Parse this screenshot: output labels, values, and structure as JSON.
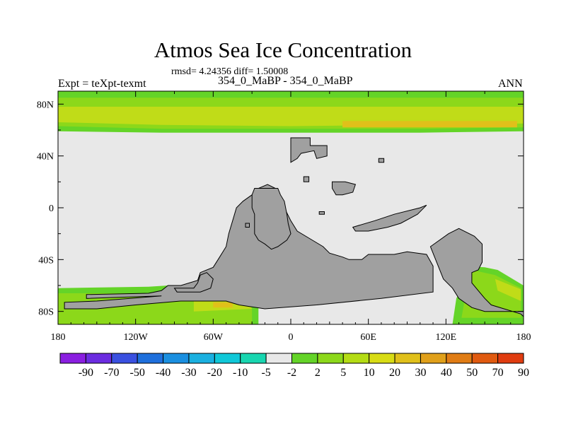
{
  "title": "Atmos Sea Ice Concentration",
  "stats": "rmsd= 4.24356 diff= 1.50008",
  "case_label": "354_0_MaBP - 354_0_MaBP",
  "expt_label": "Expt = teXpt-texmt",
  "season": "ANN",
  "colors": {
    "land": "#a0a0a0",
    "ocean_zero": "#e8e8e8"
  },
  "chart_data": {
    "type": "heatmap",
    "xlim": [
      -180,
      180
    ],
    "ylim": [
      -90,
      90
    ],
    "x_ticks": [
      {
        "value": -180,
        "label": "180"
      },
      {
        "value": -120,
        "label": "120W"
      },
      {
        "value": -60,
        "label": "60W"
      },
      {
        "value": 0,
        "label": "0"
      },
      {
        "value": 60,
        "label": "60E"
      },
      {
        "value": 120,
        "label": "120E"
      },
      {
        "value": 180,
        "label": "180"
      }
    ],
    "y_ticks": [
      {
        "value": 80,
        "label": "80N"
      },
      {
        "value": 40,
        "label": "40N"
      },
      {
        "value": 0,
        "label": "0"
      },
      {
        "value": -40,
        "label": "40S"
      },
      {
        "value": -80,
        "label": "80S"
      }
    ],
    "colorbar": {
      "colors": [
        "#8a1ee0",
        "#6b2ce0",
        "#3a50e0",
        "#1e6fdc",
        "#1a8fe0",
        "#1ab0e0",
        "#10c8d8",
        "#18d6b0",
        "#e8e8e8",
        "#64d428",
        "#8cd81a",
        "#b4dc14",
        "#d8dc14",
        "#e0c01a",
        "#e0a01a",
        "#e07c14",
        "#e05a10",
        "#e03c10"
      ],
      "labels": [
        "-90",
        "-70",
        "-50",
        "-40",
        "-30",
        "-20",
        "-10",
        "-5",
        "-2",
        "2",
        "5",
        "10",
        "20",
        "30",
        "40",
        "50",
        "70",
        "90"
      ]
    },
    "regions": [
      {
        "name": "arctic-band-light",
        "value": 5,
        "color": "#64d428",
        "polygon": [
          [
            -180,
            90
          ],
          [
            180,
            90
          ],
          [
            180,
            59
          ],
          [
            100,
            58
          ],
          [
            0,
            58
          ],
          [
            -100,
            58
          ],
          [
            -180,
            59
          ]
        ]
      },
      {
        "name": "arctic-band-mid",
        "value": 10,
        "color": "#8cd81a",
        "polygon": [
          [
            -180,
            85
          ],
          [
            180,
            85
          ],
          [
            180,
            62
          ],
          [
            100,
            61
          ],
          [
            0,
            61
          ],
          [
            -100,
            61
          ],
          [
            -180,
            63
          ]
        ]
      },
      {
        "name": "arctic-band-high",
        "value": 20,
        "color": "#c0dc18",
        "polygon": [
          [
            -180,
            78
          ],
          [
            180,
            78
          ],
          [
            180,
            65
          ],
          [
            100,
            64
          ],
          [
            0,
            63
          ],
          [
            -100,
            64
          ],
          [
            -180,
            66
          ]
        ]
      },
      {
        "name": "arctic-core",
        "value": 30,
        "color": "#e0c01a",
        "polygon": [
          [
            40,
            67
          ],
          [
            175,
            67
          ],
          [
            175,
            62
          ],
          [
            40,
            62
          ]
        ]
      },
      {
        "name": "southern-band-light",
        "value": 5,
        "color": "#64d428",
        "polygon": [
          [
            -180,
            -62
          ],
          [
            -110,
            -61
          ],
          [
            -95,
            -60
          ],
          [
            -85,
            -63
          ],
          [
            -65,
            -63
          ],
          [
            -40,
            -68
          ],
          [
            -25,
            -70
          ],
          [
            -25,
            -90
          ],
          [
            -180,
            -90
          ]
        ]
      },
      {
        "name": "southern-band-mid",
        "value": 10,
        "color": "#8cd81a",
        "polygon": [
          [
            -180,
            -66
          ],
          [
            -110,
            -66
          ],
          [
            -70,
            -67
          ],
          [
            -30,
            -70
          ],
          [
            -30,
            -90
          ],
          [
            -180,
            -90
          ]
        ]
      },
      {
        "name": "southern-core",
        "value": 20,
        "color": "#c0dc18",
        "polygon": [
          [
            -75,
            -72
          ],
          [
            -35,
            -72
          ],
          [
            -30,
            -78
          ],
          [
            -75,
            -80
          ]
        ]
      },
      {
        "name": "southern-core-hot",
        "value": 30,
        "color": "#e0c01a",
        "polygon": [
          [
            -60,
            -73
          ],
          [
            -45,
            -73
          ],
          [
            -45,
            -77
          ],
          [
            -60,
            -77
          ]
        ]
      },
      {
        "name": "ross-band-light",
        "value": 5,
        "color": "#64d428",
        "polygon": [
          [
            135,
            -45
          ],
          [
            150,
            -46
          ],
          [
            160,
            -48
          ],
          [
            180,
            -60
          ],
          [
            180,
            -90
          ],
          [
            125,
            -90
          ],
          [
            128,
            -70
          ],
          [
            133,
            -60
          ]
        ]
      },
      {
        "name": "ross-band-mid",
        "value": 10,
        "color": "#8cd81a",
        "polygon": [
          [
            140,
            -48
          ],
          [
            158,
            -52
          ],
          [
            178,
            -62
          ],
          [
            178,
            -85
          ],
          [
            132,
            -85
          ],
          [
            135,
            -68
          ]
        ]
      },
      {
        "name": "ross-core",
        "value": 20,
        "color": "#c0dc18",
        "polygon": [
          [
            158,
            -55
          ],
          [
            178,
            -63
          ],
          [
            178,
            -72
          ],
          [
            160,
            -64
          ]
        ]
      }
    ],
    "land": [
      {
        "name": "south-pangaea",
        "polygon": [
          [
            -180,
            -90
          ],
          [
            180,
            -90
          ],
          [
            180,
            -80
          ],
          [
            150,
            -80
          ],
          [
            140,
            -77
          ],
          [
            130,
            -70
          ],
          [
            125,
            -62
          ],
          [
            118,
            -55
          ],
          [
            112,
            -40
          ],
          [
            108,
            -30
          ],
          [
            122,
            -20
          ],
          [
            130,
            -16
          ],
          [
            142,
            -22
          ],
          [
            148,
            -28
          ],
          [
            148,
            -42
          ],
          [
            145,
            -48
          ],
          [
            140,
            -50
          ],
          [
            140,
            -58
          ],
          [
            145,
            -64
          ],
          [
            150,
            -70
          ],
          [
            155,
            -75
          ],
          [
            178,
            -82
          ],
          [
            180,
            -84
          ],
          [
            180,
            -90
          ]
        ]
      },
      {
        "name": "gondwana-main",
        "polygon": [
          [
            -158,
            -67
          ],
          [
            -110,
            -66
          ],
          [
            -100,
            -64
          ],
          [
            -95,
            -60
          ],
          [
            -85,
            -60
          ],
          [
            -72,
            -56
          ],
          [
            -70,
            -50
          ],
          [
            -60,
            -46
          ],
          [
            -55,
            -38
          ],
          [
            -50,
            -30
          ],
          [
            -48,
            -20
          ],
          [
            -45,
            -10
          ],
          [
            -42,
            0
          ],
          [
            -37,
            5
          ],
          [
            -30,
            10
          ],
          [
            -25,
            15
          ],
          [
            -18,
            18
          ],
          [
            -12,
            15
          ],
          [
            -10,
            10
          ],
          [
            -8,
            6
          ],
          [
            -5,
            0
          ],
          [
            0,
            -10
          ],
          [
            5,
            -18
          ],
          [
            15,
            -24
          ],
          [
            25,
            -30
          ],
          [
            30,
            -35
          ],
          [
            40,
            -38
          ],
          [
            45,
            -40
          ],
          [
            55,
            -40
          ],
          [
            60,
            -36
          ],
          [
            80,
            -36
          ],
          [
            90,
            -34
          ],
          [
            105,
            -36
          ],
          [
            110,
            -45
          ],
          [
            110,
            -65
          ],
          [
            70,
            -70
          ],
          [
            20,
            -75
          ],
          [
            -20,
            -78
          ],
          [
            -40,
            -75
          ],
          [
            -50,
            -72
          ],
          [
            -85,
            -72
          ],
          [
            -120,
            -75
          ],
          [
            -150,
            -78
          ],
          [
            -175,
            -78
          ],
          [
            -175,
            -73
          ],
          [
            -150,
            -72
          ],
          [
            -100,
            -68
          ],
          [
            -158,
            -70
          ]
        ]
      },
      {
        "name": "laurasia-west",
        "polygon": [
          [
            0,
            54
          ],
          [
            15,
            54
          ],
          [
            15,
            48
          ],
          [
            28,
            48
          ],
          [
            28,
            40
          ],
          [
            20,
            38
          ],
          [
            18,
            44
          ],
          [
            8,
            42
          ],
          [
            5,
            38
          ],
          [
            0,
            35
          ]
        ]
      },
      {
        "name": "laurasia-east",
        "polygon": [
          [
            -28,
            15
          ],
          [
            -25,
            15
          ],
          [
            -22,
            15
          ],
          [
            -10,
            15
          ],
          [
            -8,
            10
          ],
          [
            -5,
            5
          ],
          [
            -3,
            -5
          ],
          [
            -2,
            -12
          ],
          [
            0,
            -20
          ],
          [
            -3,
            -25
          ],
          [
            -10,
            -30
          ],
          [
            -15,
            -32
          ],
          [
            -20,
            -28
          ],
          [
            -25,
            -25
          ],
          [
            -28,
            -20
          ],
          [
            -28,
            -5
          ],
          [
            -30,
            0
          ],
          [
            -30,
            10
          ]
        ]
      },
      {
        "name": "east-block",
        "polygon": [
          [
            32,
            20
          ],
          [
            42,
            20
          ],
          [
            50,
            18
          ],
          [
            48,
            12
          ],
          [
            40,
            10
          ],
          [
            35,
            10
          ],
          [
            32,
            15
          ]
        ]
      },
      {
        "name": "southern-island",
        "polygon": [
          [
            48,
            -15
          ],
          [
            65,
            -10
          ],
          [
            80,
            -5
          ],
          [
            100,
            0
          ],
          [
            105,
            2
          ],
          [
            98,
            -5
          ],
          [
            85,
            -12
          ],
          [
            75,
            -15
          ],
          [
            60,
            -18
          ],
          [
            50,
            -18
          ]
        ]
      },
      {
        "name": "west-island",
        "polygon": [
          [
            -90,
            -62
          ],
          [
            -75,
            -62
          ],
          [
            -72,
            -58
          ],
          [
            -70,
            -52
          ],
          [
            -65,
            -50
          ],
          [
            -60,
            -55
          ],
          [
            -62,
            -62
          ],
          [
            -70,
            -65
          ],
          [
            -88,
            -65
          ]
        ]
      },
      {
        "name": "lone-island-1",
        "polygon": [
          [
            10,
            24
          ],
          [
            14,
            24
          ],
          [
            14,
            20
          ],
          [
            10,
            20
          ]
        ]
      },
      {
        "name": "lone-island-2",
        "polygon": [
          [
            -35,
            -12
          ],
          [
            -32,
            -12
          ],
          [
            -32,
            -15
          ],
          [
            -35,
            -15
          ]
        ]
      },
      {
        "name": "lone-island-3",
        "polygon": [
          [
            22,
            -3
          ],
          [
            26,
            -3
          ],
          [
            26,
            -5
          ],
          [
            22,
            -5
          ]
        ]
      },
      {
        "name": "lone-island-4",
        "polygon": [
          [
            68,
            38
          ],
          [
            72,
            38
          ],
          [
            72,
            35
          ],
          [
            68,
            35
          ]
        ]
      }
    ],
    "grid": false
  }
}
